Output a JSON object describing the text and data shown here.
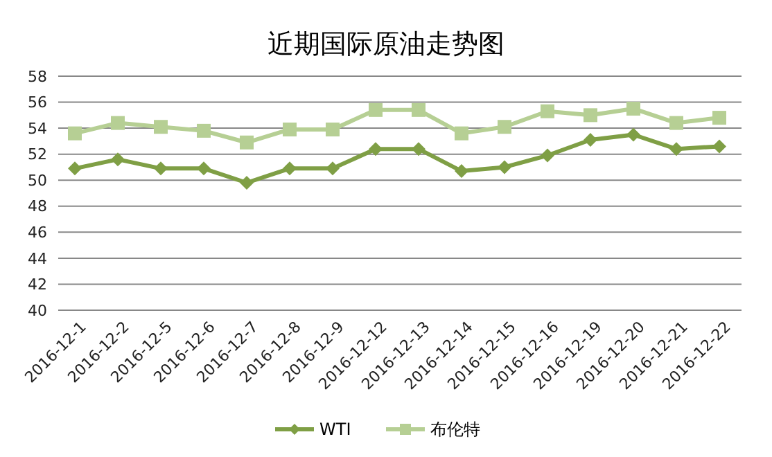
{
  "chart_data": {
    "type": "line",
    "title": "近期国际原油走势图",
    "categories": [
      "2016-12-1",
      "2016-12-2",
      "2016-12-5",
      "2016-12-6",
      "2016-12-7",
      "2016-12-8",
      "2016-12-9",
      "2016-12-12",
      "2016-12-13",
      "2016-12-14",
      "2016-12-15",
      "2016-12-16",
      "2016-12-19",
      "2016-12-20",
      "2016-12-21",
      "2016-12-22"
    ],
    "series": [
      {
        "name": "WTI",
        "color": "#7f9f45",
        "marker": "diamond",
        "values": [
          50.9,
          51.6,
          50.9,
          50.9,
          49.8,
          50.9,
          50.9,
          52.4,
          52.4,
          50.7,
          51.0,
          51.9,
          53.1,
          53.5,
          52.4,
          52.6
        ]
      },
      {
        "name": "布伦特",
        "color": "#b6cf94",
        "marker": "square",
        "values": [
          53.6,
          54.4,
          54.1,
          53.8,
          52.9,
          53.9,
          53.9,
          55.4,
          55.4,
          53.6,
          54.1,
          55.3,
          55.0,
          55.5,
          54.4,
          54.8
        ]
      }
    ],
    "ylim": [
      40,
      58
    ],
    "yticks": [
      40,
      42,
      44,
      46,
      48,
      50,
      52,
      54,
      56,
      58
    ],
    "grid": "y",
    "legend": "bottom",
    "line_style": "solid"
  }
}
